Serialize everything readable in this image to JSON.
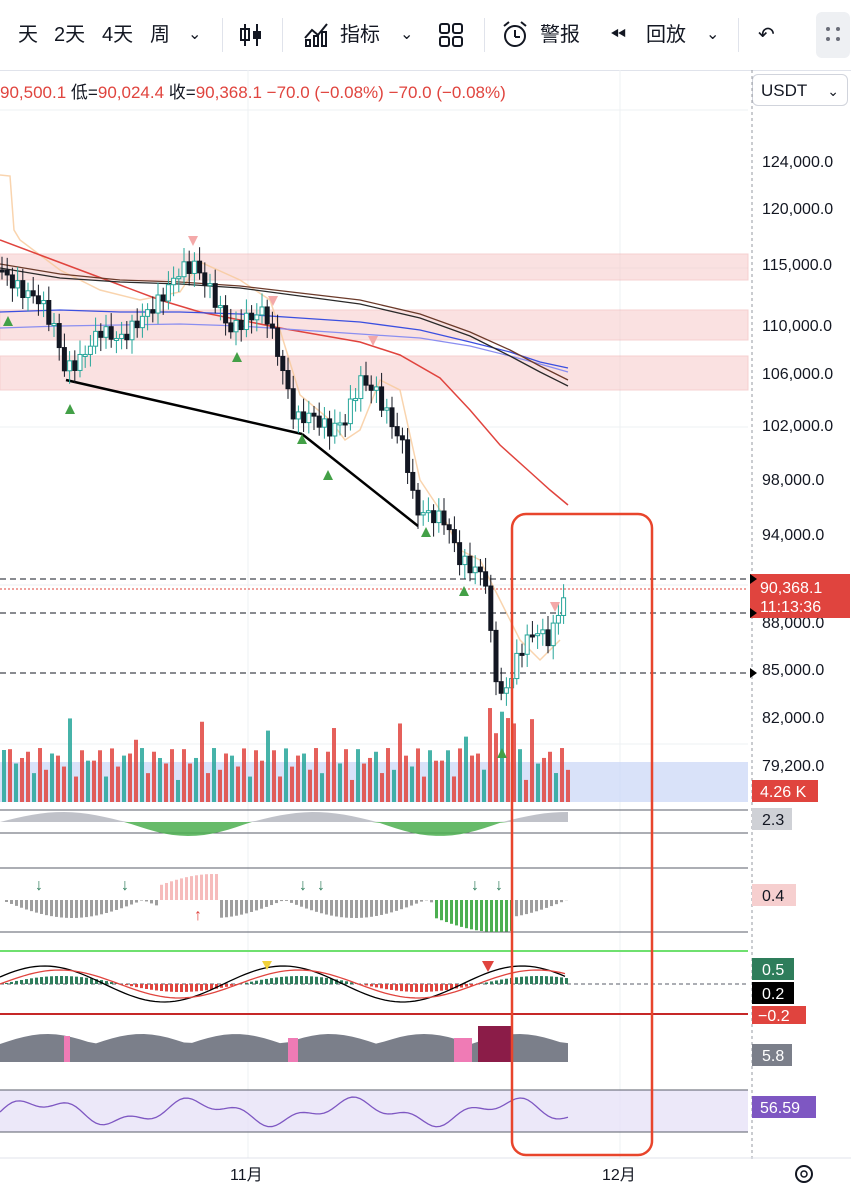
{
  "toolbar": {
    "tf_day": "天",
    "tf_2d": "2天",
    "tf_4d": "4天",
    "tf_week": "周",
    "indicators": "指标",
    "alert": "警报",
    "replay": "回放"
  },
  "ohlc": {
    "high": "90,500.1",
    "low_label": "低=",
    "low": "90,024.4",
    "close_label": "收=",
    "close": "90,368.1",
    "change1": "−70.0 (−0.08%)",
    "change2": "−70.0 (−0.08%)"
  },
  "currency": "USDT",
  "chart_data": {
    "type": "candlestick",
    "title": "",
    "xlabel": "",
    "ylabel": "",
    "y_ticks": [
      "124,000.0",
      "120,000.0",
      "115,000.0",
      "110,000.0",
      "106,000.0",
      "102,000.0",
      "98,000.0",
      "94,000.0",
      "88,000.0",
      "85,000.0",
      "82,000.0",
      "79,200.0"
    ],
    "x_ticks": [
      "11月",
      "12月"
    ],
    "current_price": "90,368.1",
    "countdown": "11:13:36",
    "volume_label": "4.26 K",
    "indicator_values": [
      "2.3",
      "0.4",
      "0.5",
      "0.2",
      "−0.2",
      "5.8",
      "56.59"
    ],
    "colors": {
      "up": "#26a69a",
      "down": "#e0443e",
      "highlight_box": "#e8452c"
    }
  }
}
